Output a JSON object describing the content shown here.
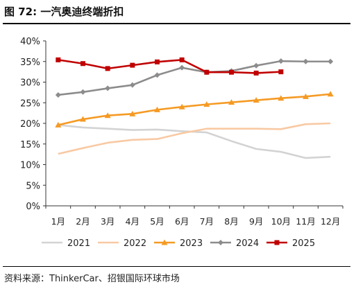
{
  "header": {
    "title": "图 72: 一汽奥迪终端折扣"
  },
  "footer": {
    "source": "资料来源：ThinkerCar、招银国际环球市场"
  },
  "chart_data": {
    "type": "line",
    "title": "",
    "xlabel": "",
    "ylabel": "",
    "categories": [
      "1月",
      "2月",
      "3月",
      "4月",
      "5月",
      "6月",
      "7月",
      "8月",
      "9月",
      "10月",
      "11月",
      "12月"
    ],
    "y_ticks": [
      "0%",
      "5%",
      "10%",
      "15%",
      "20%",
      "25%",
      "30%",
      "35%",
      "40%"
    ],
    "ylim": [
      0,
      40
    ],
    "grid": false,
    "legend_position": "bottom",
    "series": [
      {
        "name": "2021",
        "color": "#d3d3d3",
        "marker": "none",
        "values": [
          19.6,
          19.0,
          18.7,
          18.4,
          18.5,
          18.1,
          17.8,
          15.7,
          13.8,
          13.1,
          11.6,
          11.9
        ]
      },
      {
        "name": "2022",
        "color": "#f8c9a3",
        "marker": "none",
        "values": [
          12.6,
          14.0,
          15.3,
          16.0,
          16.2,
          17.6,
          18.7,
          18.7,
          18.7,
          18.6,
          19.8,
          20.0
        ]
      },
      {
        "name": "2023",
        "color": "#f59a23",
        "marker": "triangle",
        "values": [
          19.6,
          21.0,
          21.9,
          22.3,
          23.3,
          24.0,
          24.6,
          25.1,
          25.6,
          26.1,
          26.5,
          27.1
        ]
      },
      {
        "name": "2024",
        "color": "#8c8c8c",
        "marker": "diamond",
        "values": [
          26.9,
          27.6,
          28.5,
          29.3,
          31.7,
          33.5,
          32.4,
          32.7,
          34.0,
          35.1,
          35.0,
          35.0
        ]
      },
      {
        "name": "2025",
        "color": "#c00000",
        "marker": "square",
        "values": [
          35.4,
          34.5,
          33.3,
          34.1,
          34.9,
          35.4,
          32.4,
          32.4,
          32.2,
          32.5,
          null,
          null
        ]
      }
    ]
  }
}
